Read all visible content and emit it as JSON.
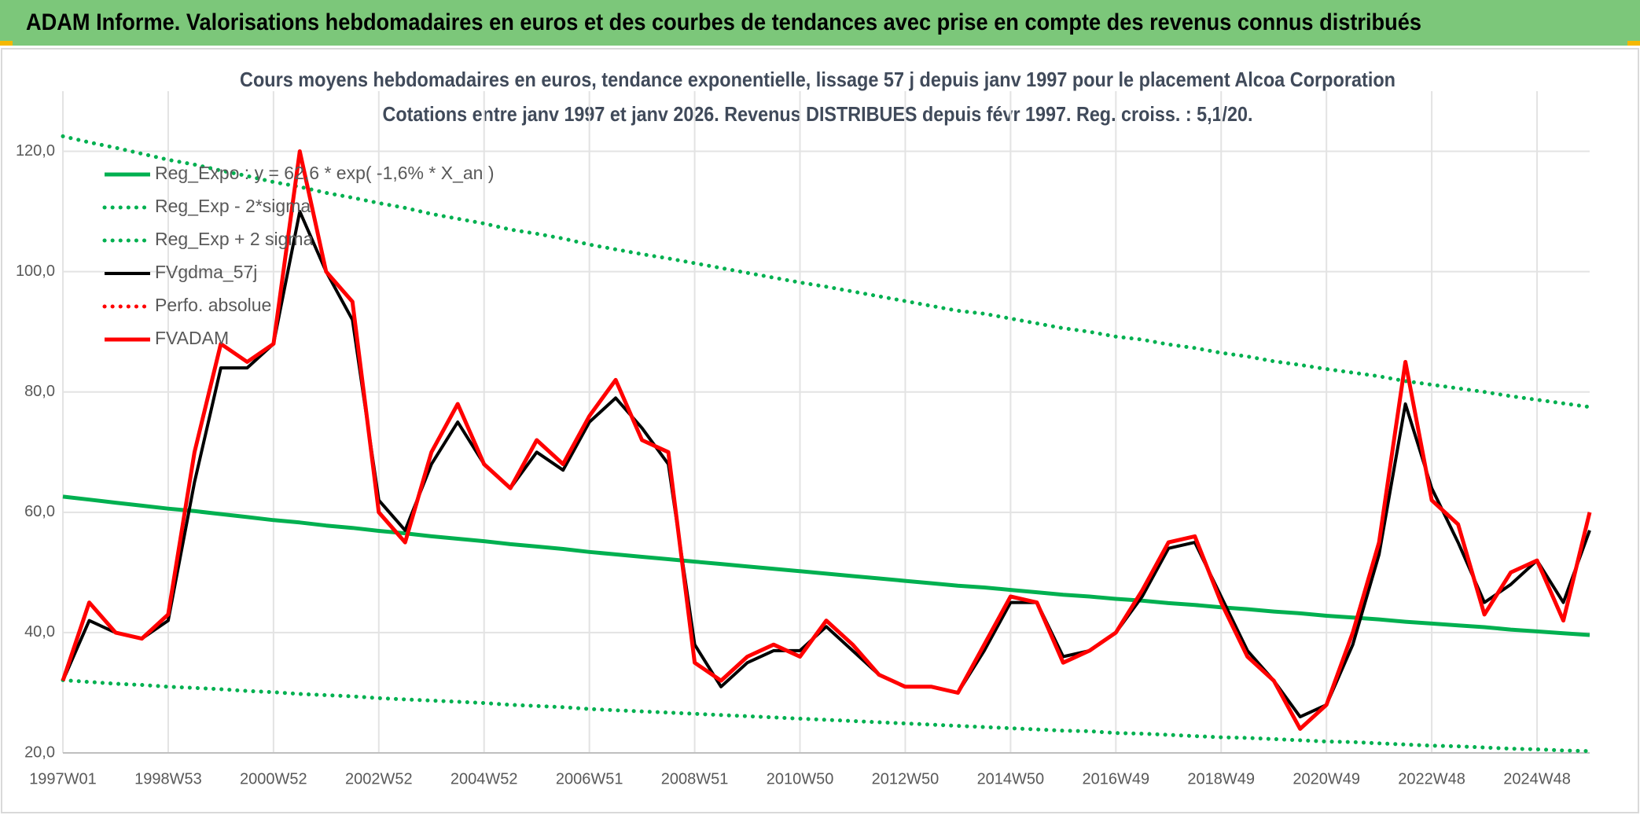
{
  "header": {
    "title": "ADAM Informe. Valorisations hebdomadaires en euros et des courbes de tendances avec prise en compte des revenus connus distribués"
  },
  "chart_data": {
    "type": "line",
    "title": "Cours moyens hebdomadaires en euros, tendance exponentielle, lissage 57 j depuis janv 1997 pour le placement Alcoa Corporation",
    "subtitle": "Cotations entre janv 1997 et janv 2026. Revenus DISTRIBUES depuis févr 1997. Reg. croiss. : 5,1/20.",
    "categories": [
      "1997W01",
      null,
      null,
      null,
      "1998W53",
      null,
      null,
      null,
      "2000W52",
      null,
      null,
      null,
      "2002W52",
      null,
      null,
      null,
      "2004W52",
      null,
      null,
      null,
      "2006W51",
      null,
      null,
      null,
      "2008W51",
      null,
      null,
      null,
      "2010W50",
      null,
      null,
      null,
      "2012W50",
      null,
      null,
      null,
      "2014W50",
      null,
      null,
      null,
      "2016W49",
      null,
      null,
      null,
      "2018W49",
      null,
      null,
      null,
      "2020W49",
      null,
      null,
      null,
      "2022W48",
      null,
      null,
      null,
      "2024W48",
      null,
      null
    ],
    "ylim": [
      20,
      130
    ],
    "yticks": [
      {
        "value": 20,
        "label": "20,0"
      },
      {
        "value": 40,
        "label": "40,0"
      },
      {
        "value": 60,
        "label": "60,0"
      },
      {
        "value": 80,
        "label": "80,0"
      },
      {
        "value": 100,
        "label": "100,0"
      },
      {
        "value": 120,
        "label": "120,0"
      }
    ],
    "grid": true,
    "legend": "top-left",
    "series": [
      {
        "name": "Reg_Expo : y = 62,6 * exp( -1,6% *  X_an )",
        "color": "#00b050",
        "style": "solid",
        "values": [
          62.6,
          62.1,
          61.6,
          61.1,
          60.6,
          60.2,
          59.7,
          59.2,
          58.7,
          58.3,
          57.8,
          57.4,
          56.9,
          56.5,
          56.0,
          55.6,
          55.2,
          54.7,
          54.3,
          53.9,
          53.4,
          53.0,
          52.6,
          52.2,
          51.8,
          51.4,
          51.0,
          50.6,
          50.2,
          49.8,
          49.4,
          49.0,
          48.6,
          48.2,
          47.8,
          47.5,
          47.1,
          46.7,
          46.3,
          46.0,
          45.6,
          45.3,
          44.9,
          44.6,
          44.2,
          43.9,
          43.5,
          43.2,
          42.8,
          42.5,
          42.2,
          41.8,
          41.5,
          41.2,
          40.9,
          40.5,
          40.2,
          39.9,
          39.6
        ]
      },
      {
        "name": "Reg_Exp - 2*sigma",
        "color": "#00b050",
        "style": "dotted",
        "values": [
          32.1,
          31.8,
          31.5,
          31.3,
          31.0,
          30.8,
          30.6,
          30.3,
          30.1,
          29.8,
          29.6,
          29.4,
          29.1,
          28.9,
          28.7,
          28.5,
          28.3,
          28.0,
          27.8,
          27.6,
          27.3,
          27.1,
          26.9,
          26.7,
          26.5,
          26.3,
          26.1,
          25.9,
          25.7,
          25.5,
          25.3,
          25.1,
          24.9,
          24.7,
          24.5,
          24.3,
          24.1,
          23.9,
          23.7,
          23.6,
          23.3,
          23.2,
          23.0,
          22.8,
          22.6,
          22.5,
          22.3,
          22.1,
          21.9,
          21.8,
          21.6,
          21.4,
          21.2,
          21.1,
          20.9,
          20.7,
          20.6,
          20.4,
          20.3
        ]
      },
      {
        "name": "Reg_Exp + 2 sigma",
        "color": "#00b050",
        "style": "dotted",
        "values": [
          122.5,
          121.5,
          120.6,
          119.6,
          118.6,
          117.8,
          116.8,
          115.9,
          114.9,
          114.1,
          113.1,
          112.3,
          111.4,
          110.6,
          109.6,
          108.8,
          108.0,
          107.0,
          106.3,
          105.5,
          104.5,
          103.7,
          102.9,
          102.2,
          101.4,
          100.6,
          99.8,
          99.0,
          98.2,
          97.5,
          96.7,
          95.9,
          95.1,
          94.3,
          93.5,
          93.0,
          92.2,
          91.4,
          90.6,
          90.0,
          89.2,
          88.7,
          87.9,
          87.3,
          86.5,
          85.9,
          85.1,
          84.5,
          83.8,
          83.2,
          82.6,
          81.8,
          81.2,
          80.6,
          80.0,
          79.3,
          78.7,
          78.1,
          77.5
        ]
      },
      {
        "name": "FVgdma_57j",
        "color": "#000000",
        "style": "solid",
        "values": [
          32,
          42,
          40,
          39,
          42,
          65,
          84,
          84,
          88,
          110,
          100,
          92,
          62,
          57,
          68,
          75,
          68,
          64,
          70,
          67,
          75,
          79,
          74,
          68,
          38,
          31,
          35,
          37,
          37,
          41,
          37,
          33,
          31,
          31,
          30,
          37,
          45,
          45,
          36,
          37,
          40,
          46,
          54,
          55,
          46,
          37,
          32,
          26,
          28,
          38,
          53,
          78,
          64,
          55,
          45,
          48,
          52,
          45,
          57
        ]
      },
      {
        "name": "Perfo. absolue",
        "color": "#ff0000",
        "style": "dotted",
        "values": [
          null,
          null,
          null,
          null,
          null,
          null,
          null,
          null,
          null,
          null,
          null,
          null,
          null,
          null,
          null,
          null,
          null,
          null,
          null,
          null,
          null,
          null,
          null,
          null,
          null,
          null,
          null,
          null,
          null,
          null,
          null,
          null,
          null,
          null,
          null,
          null,
          null,
          null,
          null,
          null,
          null,
          null,
          null,
          null,
          null,
          null,
          null,
          null,
          null,
          null,
          null,
          null,
          null,
          null,
          null,
          null,
          null,
          null,
          null
        ]
      },
      {
        "name": "FVADAM",
        "color": "#ff0000",
        "style": "solid",
        "values": [
          32,
          45,
          40,
          39,
          43,
          70,
          88,
          85,
          88,
          120,
          100,
          95,
          60,
          55,
          70,
          78,
          68,
          64,
          72,
          68,
          76,
          82,
          72,
          70,
          35,
          32,
          36,
          38,
          36,
          42,
          38,
          33,
          31,
          31,
          30,
          38,
          46,
          45,
          35,
          37,
          40,
          47,
          55,
          56,
          45,
          36,
          32,
          24,
          28,
          40,
          55,
          85,
          62,
          58,
          43,
          50,
          52,
          42,
          60
        ]
      }
    ]
  }
}
